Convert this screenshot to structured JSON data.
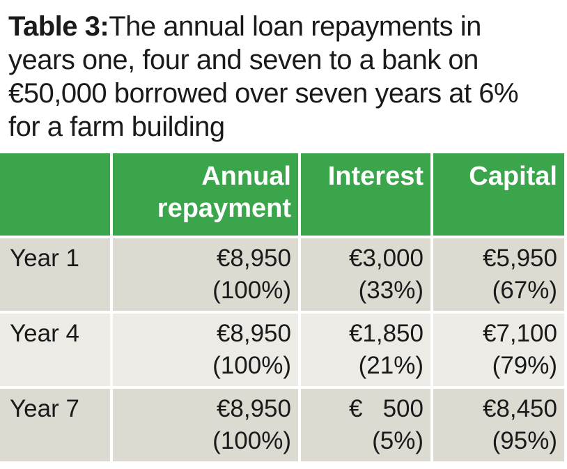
{
  "title": {
    "lead": "Table 3:",
    "text": "The annual loan repayments in years one, four and seven to a bank on €50,000 borrowed over seven years at 6% for a farm building"
  },
  "table": {
    "headers": [
      "",
      "Annual repayment",
      "Interest",
      "Capital"
    ],
    "rows": [
      {
        "label": "Year 1",
        "annual": {
          "value": "€8,950",
          "pct": "(100%)"
        },
        "interest": {
          "value": "€3,000",
          "pct": "(33%)"
        },
        "capital": {
          "value": "€5,950",
          "pct": "(67%)"
        }
      },
      {
        "label": "Year 4",
        "annual": {
          "value": "€8,950",
          "pct": "(100%)"
        },
        "interest": {
          "value": "€1,850",
          "pct": "(21%)"
        },
        "capital": {
          "value": "€7,100",
          "pct": "(79%)"
        }
      },
      {
        "label": "Year 7",
        "annual": {
          "value": "€8,950",
          "pct": "(100%)"
        },
        "interest": {
          "value": "€   500",
          "pct": "(5%)"
        },
        "capital": {
          "value": "€8,450",
          "pct": "(95%)"
        }
      }
    ]
  }
}
